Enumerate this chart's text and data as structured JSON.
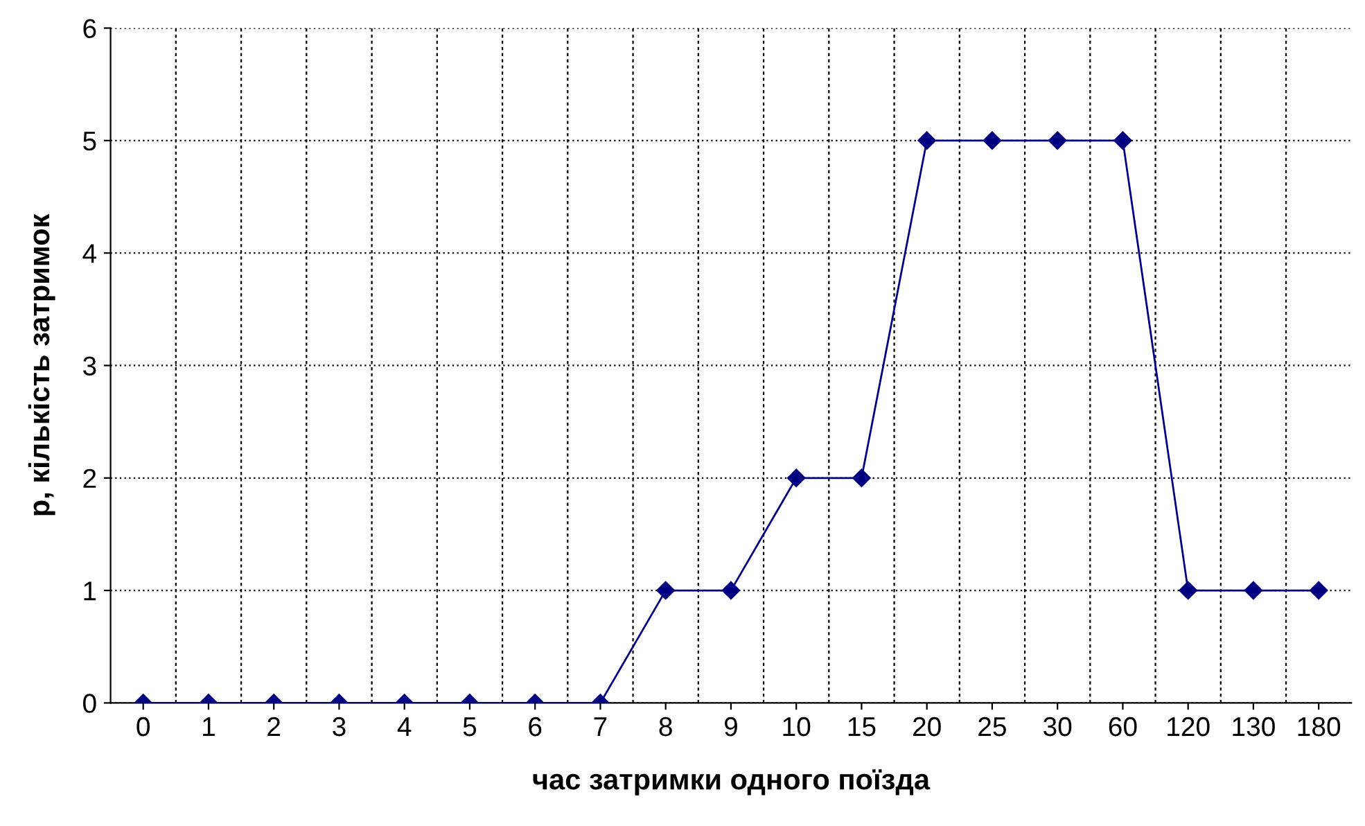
{
  "chart_data": {
    "type": "line",
    "xlabel": "час затримки одного поїзда",
    "ylabel": "р, кількість затримок",
    "categories": [
      "0",
      "1",
      "2",
      "3",
      "4",
      "5",
      "6",
      "7",
      "8",
      "9",
      "10",
      "15",
      "20",
      "25",
      "30",
      "60",
      "120",
      "130",
      "180"
    ],
    "series": [
      {
        "color": "#000080",
        "values": [
          0,
          0,
          0,
          0,
          0,
          0,
          0,
          0,
          1,
          1,
          2,
          2,
          5,
          5,
          5,
          5,
          1,
          1,
          1
        ]
      }
    ],
    "ylim": [
      0,
      6
    ],
    "yticks": [
      0,
      1,
      2,
      3,
      4,
      5,
      6
    ],
    "grid": true,
    "marker": "diamond",
    "line_style": "solid"
  }
}
